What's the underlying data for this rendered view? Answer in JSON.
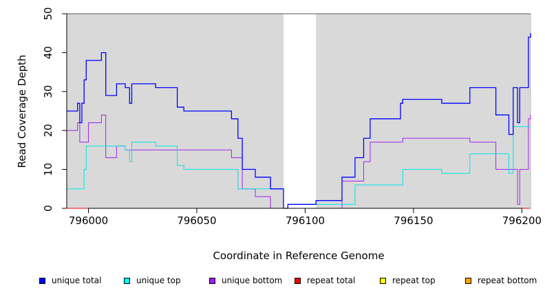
{
  "chart_data": {
    "type": "line",
    "title": "",
    "xlabel": "Coordinate in Reference Genome",
    "ylabel": "Read Coverage Depth",
    "xlim": [
      795990,
      796204
    ],
    "ylim": [
      0,
      50
    ],
    "x_ticks": [
      796000,
      796050,
      796100,
      796150,
      796200
    ],
    "x_tick_labels": [
      "796000",
      "796050",
      "796100",
      "796150",
      "796200"
    ],
    "y_ticks": [
      0,
      10,
      20,
      30,
      40,
      50
    ],
    "y_tick_labels": [
      "0",
      "10",
      "20",
      "30",
      "40",
      "50"
    ],
    "shaded_regions": [
      {
        "from": 795990,
        "to": 796090,
        "color": "#d9d9d9"
      },
      {
        "from": 796105,
        "to": 796204,
        "color": "#d9d9d9"
      }
    ],
    "grid": false,
    "legend_position": "bottom",
    "series": [
      {
        "name": "unique total",
        "color": "#0000ff",
        "x": [
          795990,
          795995,
          795996,
          795997,
          795998,
          795999,
          796000,
          796006,
          796008,
          796013,
          796017,
          796019,
          796020,
          796031,
          796041,
          796044,
          796066,
          796069,
          796071,
          796077,
          796084,
          796090,
          796092,
          796105,
          796117,
          796123,
          796127,
          796130,
          796144,
          796145,
          796163,
          796176,
          796188,
          796194,
          796196,
          796198,
          796199,
          796203,
          796204
        ],
        "y": [
          25,
          27,
          22,
          27,
          33,
          38,
          38,
          40,
          29,
          32,
          31,
          27,
          32,
          31,
          26,
          25,
          23,
          18,
          10,
          8,
          5,
          0,
          1,
          2,
          8,
          13,
          18,
          23,
          27,
          28,
          27,
          31,
          24,
          19,
          31,
          22,
          31,
          44,
          45
        ]
      },
      {
        "name": "unique top",
        "color": "#00e5e5",
        "x": [
          795990,
          795998,
          795999,
          796013,
          796017,
          796019,
          796020,
          796031,
          796041,
          796044,
          796069,
          796077,
          796084,
          796090,
          796092,
          796105,
          796117,
          796123,
          796145,
          796163,
          796176,
          796188,
          796194,
          796196,
          796204
        ],
        "y": [
          5,
          10,
          16,
          16,
          15,
          12,
          17,
          16,
          11,
          10,
          5,
          5,
          5,
          0,
          1,
          1,
          1,
          6,
          10,
          9,
          14,
          14,
          9,
          21,
          21
        ]
      },
      {
        "name": "unique bottom",
        "color": "#a020f0",
        "x": [
          795990,
          795995,
          795996,
          796000,
          796006,
          796008,
          796013,
          796017,
          796066,
          796071,
          796077,
          796084,
          796090,
          796117,
          796127,
          796130,
          796145,
          796176,
          796188,
          796198,
          796199,
          796203,
          796204
        ],
        "y": [
          20,
          22,
          17,
          22,
          24,
          13,
          16,
          15,
          13,
          5,
          3,
          0,
          0,
          7,
          12,
          17,
          18,
          17,
          10,
          1,
          10,
          23,
          24
        ]
      },
      {
        "name": "repeat total",
        "color": "#ff0000",
        "x": [
          795990,
          796204
        ],
        "y": [
          0,
          0
        ]
      },
      {
        "name": "repeat top",
        "color": "#ffff00",
        "x": [
          795990,
          796204
        ],
        "y": [
          0,
          0
        ]
      },
      {
        "name": "repeat bottom",
        "color": "#ffa500",
        "x": [
          795990,
          796204
        ],
        "y": [
          0,
          0
        ]
      }
    ]
  },
  "legend": {
    "items": [
      {
        "label": "unique total",
        "color": "#0000ff"
      },
      {
        "label": "unique top",
        "color": "#00ffff"
      },
      {
        "label": "unique bottom",
        "color": "#a020f0"
      },
      {
        "label": "repeat total",
        "color": "#ff0000"
      },
      {
        "label": "repeat top",
        "color": "#ffff00"
      },
      {
        "label": "repeat bottom",
        "color": "#ffa500"
      }
    ]
  }
}
